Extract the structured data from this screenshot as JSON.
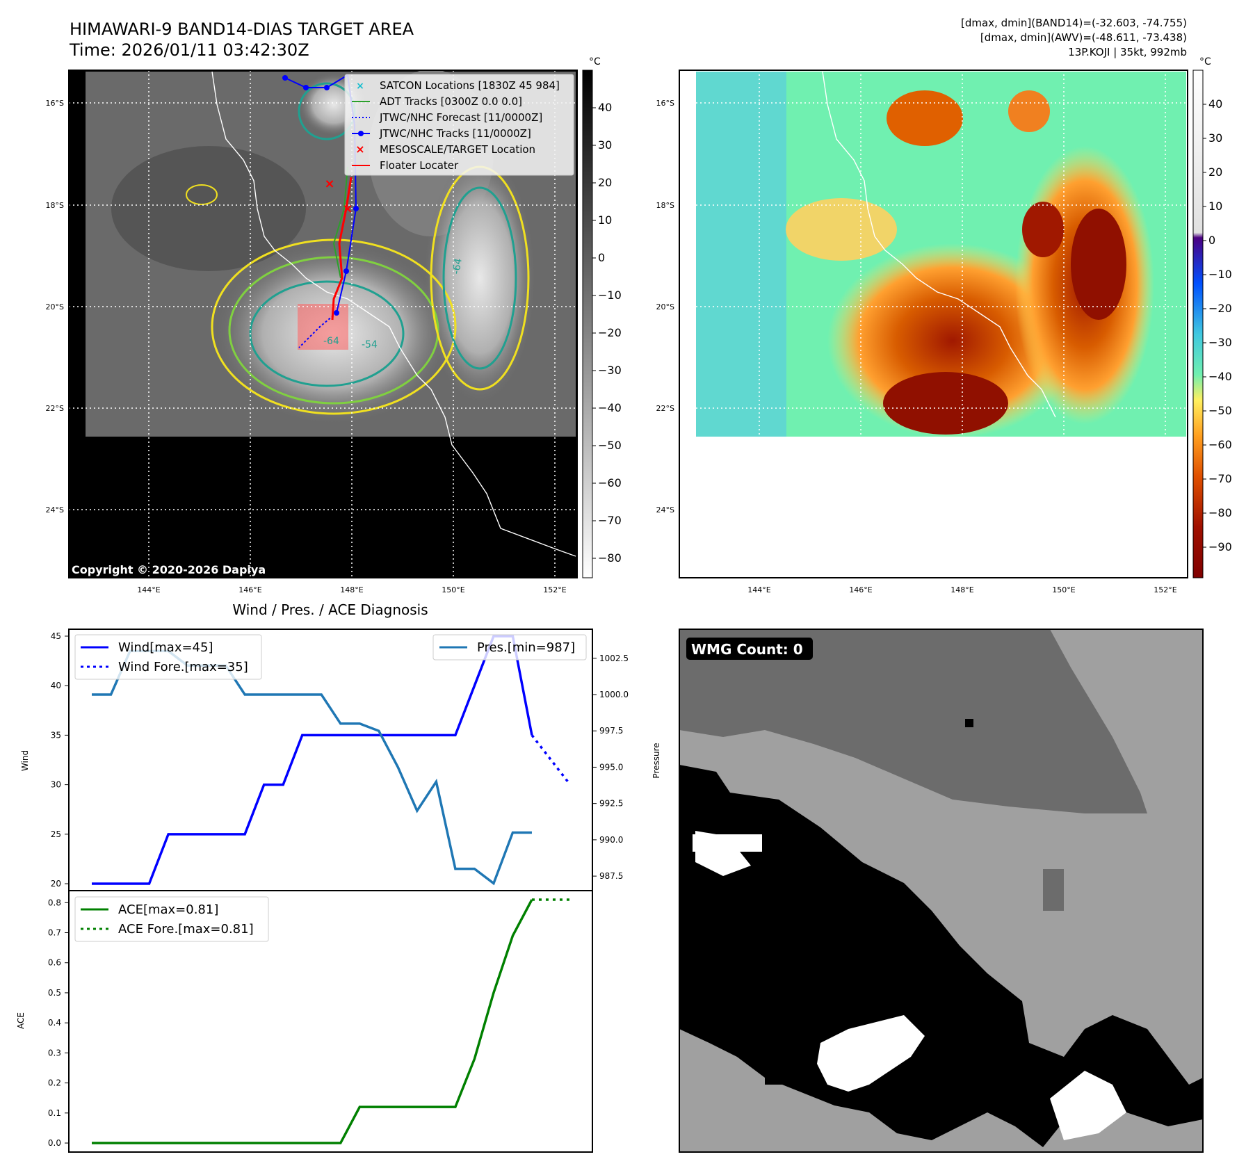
{
  "header": {
    "title": "HIMAWARI-9 BAND14-DIAS TARGET AREA",
    "time": "Time: 2026/01/11 03:42:30Z",
    "stats_band14": "[dmax, dmin](BAND14)=(-32.603, -74.755)",
    "stats_awv": "[dmax, dmin](AWV)=(-48.611, -73.438)",
    "storm_info": "13P.KOJI | 35kt, 992mb"
  },
  "map": {
    "lat_labels": [
      "16°S",
      "18°S",
      "20°S",
      "22°S",
      "24°S"
    ],
    "lon_labels": [
      "144°E",
      "146°E",
      "148°E",
      "150°E",
      "152°E"
    ],
    "copyright": "Copyright © 2020-2026 Dapiya",
    "contour_labels": [
      "-64",
      "-54",
      "-64"
    ],
    "legend": [
      {
        "label": "SATCON Locations [1830Z 45 984]",
        "color": "#17becf"
      },
      {
        "label": "ADT Tracks [0300Z 0.0 0.0]",
        "color": "#2ca02c"
      },
      {
        "label": "JTWC/NHC Forecast [11/0000Z]",
        "color": "#0000ff"
      },
      {
        "label": "JTWC/NHC Tracks [11/0000Z]",
        "color": "#0000ff"
      },
      {
        "label": "MESOSCALE/TARGET Location",
        "color": "#ff0000"
      },
      {
        "label": "Floater Locater",
        "color": "#ff0000"
      }
    ]
  },
  "colorbar_gray": {
    "unit": "°C",
    "ticks": [
      "40",
      "30",
      "20",
      "10",
      "0",
      "−10",
      "−20",
      "−30",
      "−40",
      "−50",
      "−60",
      "−70",
      "−80"
    ]
  },
  "colorbar_color": {
    "unit": "°C",
    "ticks": [
      "40",
      "30",
      "20",
      "10",
      "0",
      "−10",
      "−20",
      "−30",
      "−40",
      "−50",
      "−60",
      "−70",
      "−80",
      "−90"
    ]
  },
  "diagnosis": {
    "title": "Wind / Pres. / ACE Diagnosis",
    "wind_ylabel": "Wind",
    "pres_ylabel": "Pressure",
    "ace_ylabel": "ACE",
    "legend_wind": "Wind[max=45]",
    "legend_wind_fore": "Wind Fore.[max=35]",
    "legend_pres": "Pres.[min=987]",
    "legend_ace": "ACE[max=0.81]",
    "legend_ace_fore": "ACE Fore.[max=0.81]"
  },
  "wmg": {
    "label": "WMG Count: 0"
  },
  "chart_data": [
    {
      "type": "line",
      "title": "Wind / Pres. / ACE Diagnosis",
      "ylabel": "Wind",
      "ylim": [
        19.3,
        45.7
      ],
      "y_ticks": [
        20,
        25,
        30,
        35,
        40,
        45
      ],
      "series": [
        {
          "name": "Wind[max=45]",
          "x": [
            0,
            1,
            2,
            3,
            4,
            5,
            6,
            7,
            8,
            9,
            10,
            11,
            12,
            13,
            14,
            15,
            16,
            17,
            18,
            19,
            20,
            21,
            22,
            23
          ],
          "values": [
            20,
            20,
            20,
            20,
            25,
            25,
            25,
            25,
            25,
            30,
            30,
            35,
            35,
            35,
            35,
            35,
            35,
            35,
            35,
            35,
            40,
            45,
            45,
            35
          ]
        },
        {
          "name": "Wind Fore.[max=35]",
          "x": [
            23,
            25
          ],
          "values": [
            35,
            30
          ]
        },
        {
          "name": "Pres.[min=987]",
          "axis": "right",
          "x": [
            0,
            1,
            2,
            3,
            4,
            5,
            6,
            7,
            8,
            9,
            10,
            11,
            12,
            13,
            14,
            15,
            16,
            17,
            18,
            19,
            20,
            21,
            22,
            23
          ],
          "values": [
            1000,
            1000,
            1003,
            1003,
            1003,
            1002,
            1002,
            1002,
            1000,
            1000,
            1000,
            1000,
            1000,
            998,
            998,
            997.5,
            995,
            992,
            994,
            988,
            988,
            987,
            990.5,
            990.5
          ]
        }
      ],
      "y2lim": [
        986.5,
        1004.5
      ],
      "y2_ticks": [
        987.5,
        990.0,
        992.5,
        995.0,
        997.5,
        1000.0,
        1002.5
      ]
    },
    {
      "type": "line",
      "ylabel": "ACE",
      "ylim": [
        -0.03,
        0.84
      ],
      "y_ticks": [
        0.0,
        0.1,
        0.2,
        0.3,
        0.4,
        0.5,
        0.6,
        0.7,
        0.8
      ],
      "series": [
        {
          "name": "ACE[max=0.81]",
          "x": [
            0,
            1,
            2,
            3,
            4,
            5,
            6,
            7,
            8,
            9,
            10,
            11,
            12,
            13,
            14,
            15,
            16,
            17,
            18,
            19,
            20,
            21,
            22,
            23
          ],
          "values": [
            0,
            0,
            0,
            0,
            0,
            0,
            0,
            0,
            0,
            0,
            0,
            0,
            0,
            0,
            0.12,
            0.12,
            0.12,
            0.12,
            0.12,
            0.12,
            0.28,
            0.5,
            0.69,
            0.81
          ]
        },
        {
          "name": "ACE Fore.[max=0.81]",
          "x": [
            23,
            25
          ],
          "values": [
            0.81,
            0.81
          ]
        }
      ]
    }
  ]
}
